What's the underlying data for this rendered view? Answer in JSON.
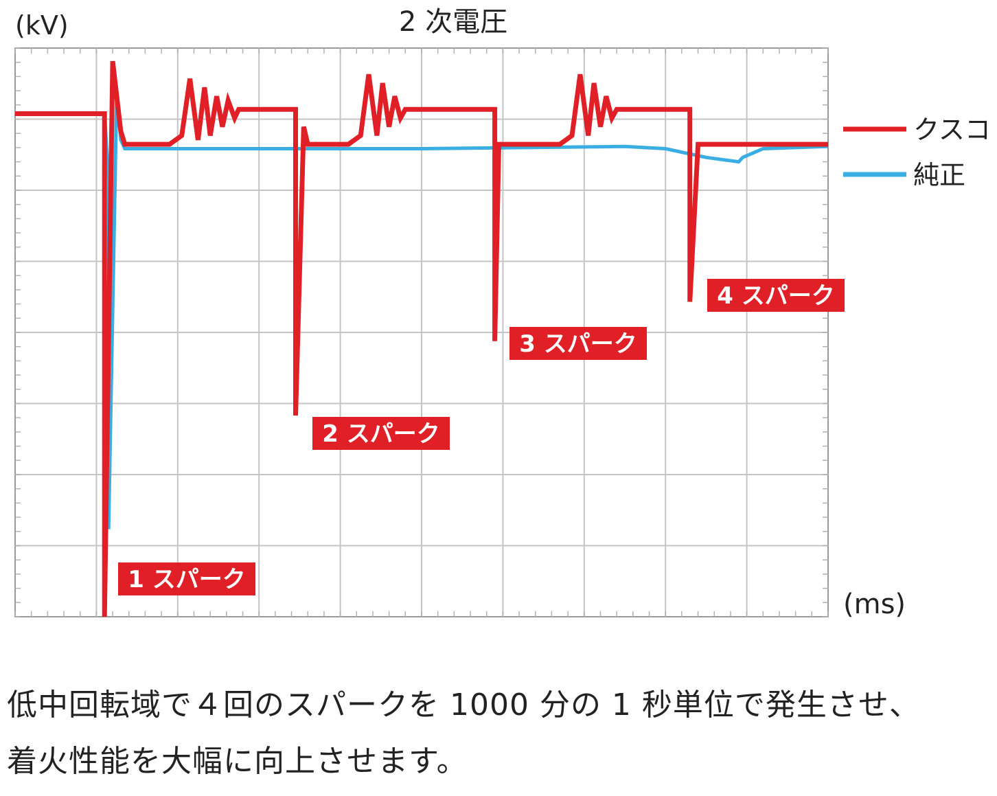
{
  "chart_data": {
    "type": "line",
    "title": "2 次電圧",
    "ylabel": "(kV)",
    "xlabel": "(ms)",
    "grid": true,
    "legend_position": "right",
    "series": [
      {
        "name": "クスコ",
        "color": "#e01f26",
        "points": [
          [
            0,
            8.5
          ],
          [
            1.1,
            8.5
          ],
          [
            1.1,
            -3.0
          ],
          [
            1.2,
            9.7
          ],
          [
            1.3,
            8.1
          ],
          [
            1.35,
            7.8
          ],
          [
            1.9,
            7.8
          ],
          [
            2.05,
            8.0
          ],
          [
            2.15,
            9.3
          ],
          [
            2.25,
            7.9
          ],
          [
            2.33,
            9.1
          ],
          [
            2.4,
            8.0
          ],
          [
            2.48,
            8.9
          ],
          [
            2.55,
            8.2
          ],
          [
            2.62,
            8.8
          ],
          [
            2.7,
            8.4
          ],
          [
            2.75,
            8.6
          ],
          [
            3.45,
            8.6
          ],
          [
            3.45,
            1.6
          ],
          [
            3.55,
            8.2
          ],
          [
            3.6,
            7.8
          ],
          [
            4.1,
            7.8
          ],
          [
            4.25,
            8.0
          ],
          [
            4.35,
            9.4
          ],
          [
            4.45,
            8.0
          ],
          [
            4.52,
            9.2
          ],
          [
            4.6,
            8.2
          ],
          [
            4.67,
            8.9
          ],
          [
            4.74,
            8.4
          ],
          [
            4.8,
            8.6
          ],
          [
            5.9,
            8.6
          ],
          [
            5.9,
            3.3
          ],
          [
            5.95,
            7.8
          ],
          [
            6.7,
            7.8
          ],
          [
            6.85,
            8.0
          ],
          [
            6.95,
            9.4
          ],
          [
            7.05,
            8.0
          ],
          [
            7.12,
            9.2
          ],
          [
            7.2,
            8.2
          ],
          [
            7.27,
            8.9
          ],
          [
            7.34,
            8.4
          ],
          [
            7.4,
            8.6
          ],
          [
            8.3,
            8.6
          ],
          [
            8.3,
            4.2
          ],
          [
            8.4,
            7.8
          ],
          [
            10.0,
            7.8
          ]
        ]
      },
      {
        "name": "純正",
        "color": "#3aaee3",
        "points": [
          [
            0,
            8.5
          ],
          [
            1.1,
            8.5
          ],
          [
            1.15,
            7.0
          ],
          [
            1.15,
            -1.0
          ],
          [
            1.25,
            9.0
          ],
          [
            1.3,
            7.9
          ],
          [
            1.35,
            7.7
          ],
          [
            5.0,
            7.7
          ],
          [
            7.5,
            7.75
          ],
          [
            8.0,
            7.7
          ],
          [
            8.5,
            7.5
          ],
          [
            8.9,
            7.4
          ],
          [
            8.95,
            7.5
          ],
          [
            9.2,
            7.7
          ],
          [
            10.0,
            7.75
          ]
        ]
      }
    ],
    "annotations": [
      "1 スパーク",
      "2 スパーク",
      "3 スパーク",
      "4 スパーク"
    ],
    "xlim": [
      0,
      10
    ],
    "ylim": [
      -3,
      10
    ],
    "caption_lines": [
      "低中回転域で４回のスパークを 1000 分の 1 秒単位で発生させ、",
      "着火性能を大幅に向上させます。"
    ]
  }
}
